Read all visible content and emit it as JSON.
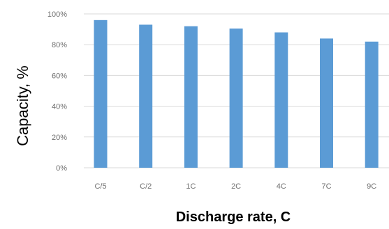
{
  "chart_data": {
    "type": "bar",
    "categories": [
      "C/5",
      "C/2",
      "1C",
      "2C",
      "4C",
      "7C",
      "9C"
    ],
    "values": [
      96,
      93,
      92,
      90.5,
      88,
      84,
      82
    ],
    "title": "",
    "xlabel": "Discharge rate, C",
    "ylabel": "Capacity, %",
    "ylim": [
      0,
      100
    ],
    "yticks": [
      0,
      20,
      40,
      60,
      80,
      100
    ],
    "ytick_labels": [
      "0%",
      "20%",
      "40%",
      "60%",
      "80%",
      "100%"
    ],
    "grid": true,
    "legend": "none"
  },
  "colors": {
    "bar": "#5b9bd5",
    "grid": "#d9d9d9",
    "tick_text": "#6f6f6f",
    "axis_title": "#000000"
  }
}
